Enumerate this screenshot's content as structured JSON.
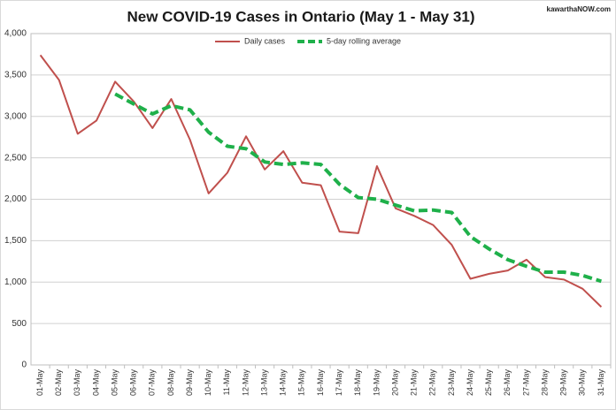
{
  "chart_data": {
    "type": "line",
    "title": "New COVID-19 Cases in Ontario (May 1 - May 31)",
    "watermark": "kawarthaNOW.com",
    "categories": [
      "01-May",
      "02-May",
      "03-May",
      "04-May",
      "05-May",
      "06-May",
      "07-May",
      "08-May",
      "09-May",
      "10-May",
      "11-May",
      "12-May",
      "13-May",
      "14-May",
      "15-May",
      "16-May",
      "17-May",
      "18-May",
      "19-May",
      "20-May",
      "21-May",
      "22-May",
      "23-May",
      "24-May",
      "25-May",
      "26-May",
      "27-May",
      "28-May",
      "29-May",
      "30-May",
      "31-May"
    ],
    "series": [
      {
        "name": "Daily cases",
        "color": "#c0504d",
        "style": "solid",
        "values": [
          3740,
          3440,
          2790,
          2950,
          3420,
          3180,
          2860,
          3210,
          2720,
          2070,
          2320,
          2760,
          2360,
          2580,
          2200,
          2170,
          1610,
          1590,
          2400,
          1890,
          1800,
          1690,
          1450,
          1040,
          1100,
          1140,
          1270,
          1060,
          1030,
          920,
          700
        ]
      },
      {
        "name": "5-day rolling average",
        "color": "#1fb04a",
        "style": "dashed",
        "values": [
          null,
          null,
          null,
          null,
          3270,
          3150,
          3030,
          3130,
          3080,
          2810,
          2640,
          2610,
          2450,
          2420,
          2440,
          2420,
          2180,
          2020,
          2000,
          1930,
          1860,
          1870,
          1840,
          1550,
          1400,
          1270,
          1190,
          1120,
          1120,
          1080,
          1010
        ]
      }
    ],
    "ylim": [
      0,
      4000
    ],
    "yticks": [
      0,
      500,
      {
        "value": 1000,
        "label": "1,000"
      },
      {
        "value": 1500,
        "label": "1,500"
      },
      {
        "value": 2000,
        "label": "2,000"
      },
      {
        "value": 2500,
        "label": "2,500"
      },
      {
        "value": 3000,
        "label": "3,000"
      },
      {
        "value": 3500,
        "label": "3,500"
      },
      {
        "value": 4000,
        "label": "4,000"
      }
    ],
    "grid": true,
    "legend": "top"
  }
}
